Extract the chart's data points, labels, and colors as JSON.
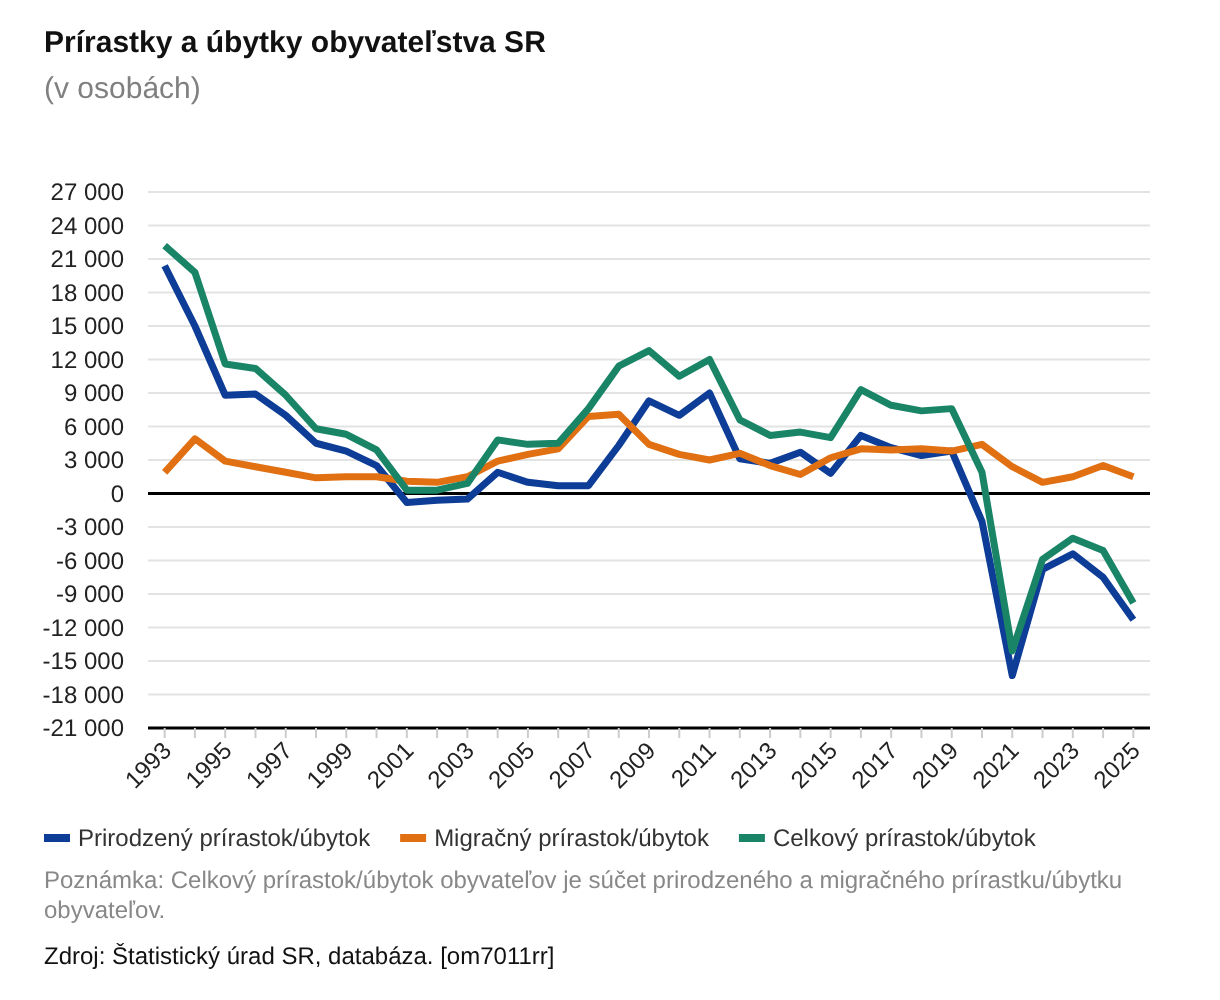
{
  "chart_data": {
    "type": "line",
    "title": "Prírastky a úbytky obyvateľstva SR",
    "subtitle": "(v osobách)",
    "categories": [
      "1993",
      null,
      "1995",
      null,
      "1997",
      null,
      "1999",
      null,
      "2001",
      null,
      "2003",
      null,
      "2005",
      null,
      "2007",
      null,
      "2009",
      null,
      "2011",
      null,
      "2013",
      null,
      "2015",
      null,
      "2017",
      null,
      "2019",
      null,
      "2021",
      null,
      "2023",
      null,
      "2025"
    ],
    "series": [
      {
        "name": "Prirodzený prírastok/úbytok",
        "color": "#0d3d96",
        "values": [
          20400,
          15000,
          8800,
          8900,
          7000,
          4500,
          3800,
          2500,
          -800,
          -600,
          -500,
          1900,
          1000,
          700,
          700,
          4300,
          8300,
          7000,
          9000,
          3100,
          2700,
          3700,
          1800,
          5200,
          4100,
          3400,
          3800,
          -2500,
          -16300,
          -6800,
          -5400,
          -7500,
          -11300
        ]
      },
      {
        "name": "Migračný prírastok/úbytok",
        "color": "#e07012",
        "values": [
          1900,
          4900,
          2900,
          2400,
          1900,
          1400,
          1500,
          1500,
          1100,
          1000,
          1500,
          2900,
          3500,
          4000,
          6900,
          7100,
          4400,
          3500,
          3000,
          3600,
          2500,
          1700,
          3200,
          4000,
          3900,
          4000,
          3800,
          4400,
          2400,
          1000,
          1500,
          2500,
          1500
        ]
      },
      {
        "name": "Celkový prírastok/úbytok",
        "color": "#1a8566",
        "values": [
          22200,
          19800,
          11600,
          11200,
          8800,
          5800,
          5300,
          3900,
          300,
          300,
          900,
          4800,
          4400,
          4500,
          7600,
          11400,
          12800,
          10500,
          12000,
          6600,
          5200,
          5500,
          5000,
          9300,
          7900,
          7400,
          7600,
          1900,
          -14100,
          -5900,
          -4000,
          -5100,
          -9800
        ]
      }
    ],
    "ylim": [
      -21000,
      27000
    ],
    "yticks": [
      {
        "value": -21000,
        "label": "-21 000"
      },
      {
        "value": -18000,
        "label": "-18 000"
      },
      {
        "value": -15000,
        "label": "-15 000"
      },
      {
        "value": -12000,
        "label": "-12 000"
      },
      {
        "value": -9000,
        "label": "-9 000"
      },
      {
        "value": -6000,
        "label": "-6 000"
      },
      {
        "value": -3000,
        "label": "-3 000"
      },
      0,
      {
        "value": 3000,
        "label": "3 000"
      },
      {
        "value": 6000,
        "label": "6 000"
      },
      {
        "value": 9000,
        "label": "9 000"
      },
      {
        "value": 12000,
        "label": "12 000"
      },
      {
        "value": 15000,
        "label": "15 000"
      },
      {
        "value": 18000,
        "label": "18 000"
      },
      {
        "value": 21000,
        "label": "21 000"
      },
      {
        "value": 24000,
        "label": "24 000"
      },
      {
        "value": 27000,
        "label": "27 000"
      }
    ],
    "grid": "y",
    "ref_lines": [
      {
        "axis": "y",
        "value": 0,
        "color": "#000000"
      }
    ],
    "legend": "bottom",
    "annotations": [
      "Poznámka: Celkový prírastok/úbytok obyvateľov je súčet prirodzeného a migračného prírastku/úbytku obyvateľov.",
      "Zdroj: Štatistický úrad SR, databáza. [om7011rr]"
    ]
  }
}
